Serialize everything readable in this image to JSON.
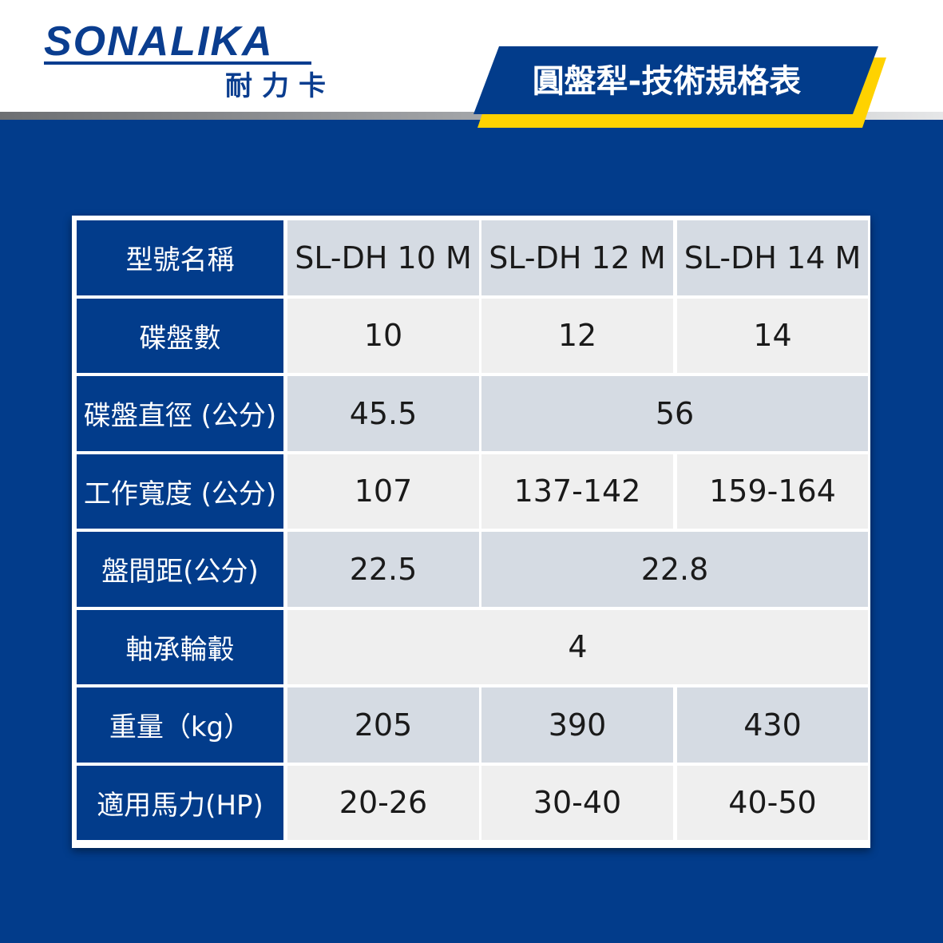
{
  "header": {
    "brand": "SONALIKA",
    "brand_cn": "耐力卡",
    "title": "圓盤犁-技術規格表"
  },
  "table": {
    "rows": [
      {
        "label": "型號名稱",
        "cells": [
          "SL-DH 10 M",
          "SL-DH 12 M",
          "SL-DH 14 M"
        ]
      },
      {
        "label": "碟盤數",
        "cells": [
          "10",
          "12",
          "14"
        ]
      },
      {
        "label": "碟盤直徑 (公分)",
        "cells": [
          "45.5",
          "56"
        ]
      },
      {
        "label": "工作寬度 (公分)",
        "cells": [
          "107",
          "137-142",
          "159-164"
        ]
      },
      {
        "label": "盤間距(公分)",
        "cells": [
          "22.5",
          "22.8"
        ]
      },
      {
        "label": "軸承輪轂",
        "cells": [
          "4"
        ]
      },
      {
        "label": "重量（kg）",
        "cells": [
          "205",
          "390",
          "430"
        ]
      },
      {
        "label": "適用馬力(HP)",
        "cells": [
          "20-26",
          "30-40",
          "40-50"
        ]
      }
    ]
  }
}
